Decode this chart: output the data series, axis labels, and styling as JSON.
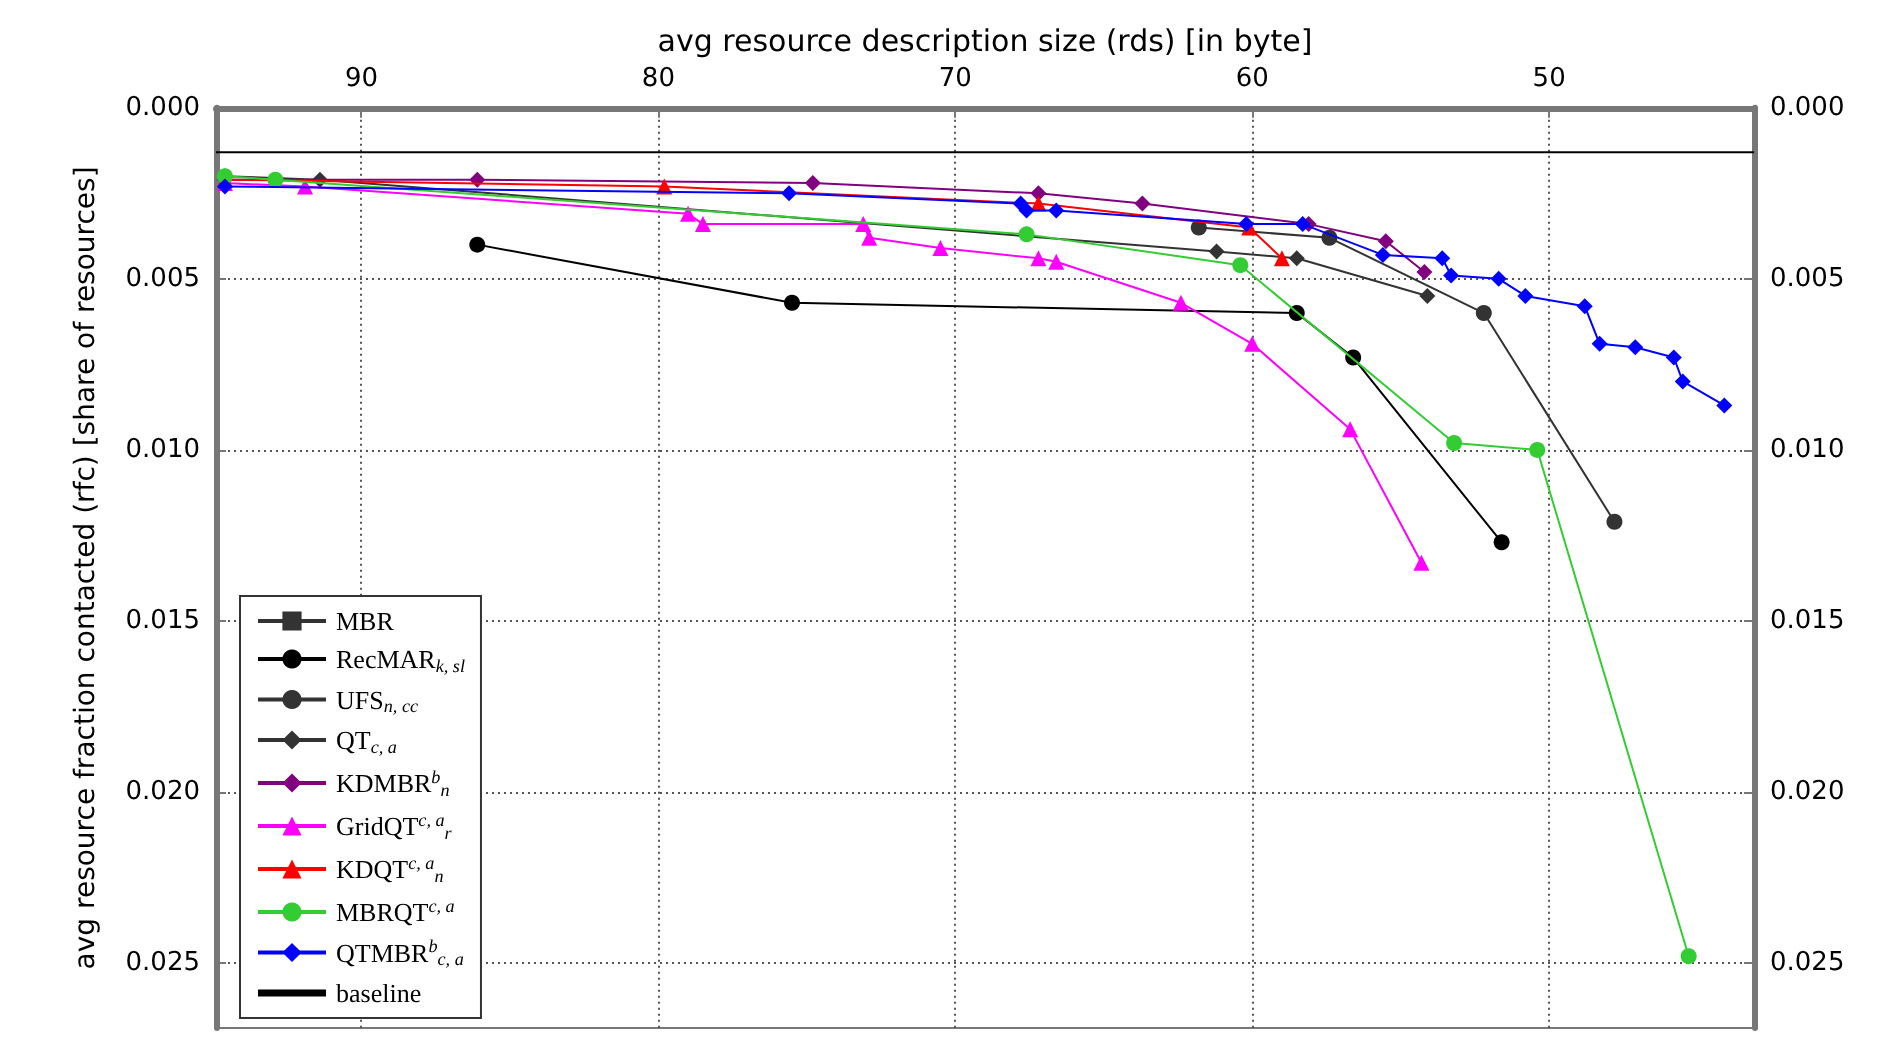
{
  "chart_data": {
    "type": "line",
    "xlabel": "avg resource description size (rds) [in byte]",
    "ylabel": "avg resource fraction contacted (rfc) [share of resources]",
    "xlim": [
      94.9,
      43.1
    ],
    "xticks": [
      90,
      80,
      70,
      60,
      50
    ],
    "ylim": [
      0.0269,
      0
    ],
    "yticks": [
      {
        "value": 0,
        "label": "0.000"
      },
      {
        "value": 0.005,
        "label": "0.005"
      },
      {
        "value": 0.01,
        "label": "0.010"
      },
      {
        "value": 0.015,
        "label": "0.015"
      },
      {
        "value": 0.02,
        "label": "0.020"
      },
      {
        "value": 0.025,
        "label": "0.025"
      }
    ],
    "y2lim": [
      0.0269,
      0
    ],
    "y2ticks": [
      {
        "value": 0,
        "label": "0.000"
      },
      {
        "value": 0.005,
        "label": "0.005"
      },
      {
        "value": 0.01,
        "label": "0.010"
      },
      {
        "value": 0.015,
        "label": "0.015"
      },
      {
        "value": 0.02,
        "label": "0.020"
      },
      {
        "value": 0.025,
        "label": "0.025"
      }
    ],
    "grid": true,
    "legend": "bottom left",
    "series": [
      {
        "name": "MBR",
        "color": "#333333",
        "marker": "square"
      },
      {
        "name": "RecMAR$_{k, sl}$",
        "color": "#000000",
        "marker": "circle",
        "x": [
          86.1,
          75.5,
          58.5,
          56.6,
          51.6
        ],
        "values": [
          0.004,
          0.0057,
          0.006,
          0.0073,
          0.0127
        ]
      },
      {
        "name": "UFS$_{n, cc}$",
        "color": "#333333",
        "marker": "circle",
        "x": [
          61.8,
          57.4,
          52.2,
          47.8
        ],
        "values": [
          0.0035,
          0.0038,
          0.006,
          0.0121
        ]
      },
      {
        "name": "QT$_{c, a}$",
        "color": "#333333",
        "marker": "diamond",
        "x": [
          94.6,
          91.4,
          61.2,
          58.5,
          54.1
        ],
        "values": [
          0.002,
          0.0021,
          0.0042,
          0.0044,
          0.0055
        ]
      },
      {
        "name": "KDMBR$^{b}$$_{n}$",
        "color": "#800080",
        "marker": "diamond",
        "x": [
          94.6,
          86.1,
          74.8,
          67.2,
          63.7,
          58.1,
          55.5,
          54.2
        ],
        "values": [
          0.0021,
          0.0021,
          0.0022,
          0.0025,
          0.0028,
          0.0034,
          0.0039,
          0.0048
        ]
      },
      {
        "name": "GridQT$^{c, a}$$_{r}$",
        "color": "#ff00ff",
        "marker": "triangle",
        "x": [
          94.6,
          91.9,
          79.0,
          78.5,
          73.1,
          72.9,
          70.5,
          67.2,
          66.6,
          62.4,
          60.0,
          56.7,
          54.3
        ],
        "values": [
          0.0022,
          0.0023,
          0.0031,
          0.0034,
          0.0034,
          0.0038,
          0.0041,
          0.0044,
          0.0045,
          0.0057,
          0.0069,
          0.0094,
          0.0133
        ]
      },
      {
        "name": "KDQT$^{c, a}$$_{n}$",
        "color": "#ff0000",
        "marker": "triangle",
        "x": [
          94.6,
          79.8,
          67.2,
          60.1,
          59.0
        ],
        "values": [
          0.0021,
          0.0023,
          0.0028,
          0.0035,
          0.0044
        ]
      },
      {
        "name": "MBRQT$^{c, a}$",
        "color": "#33cc33",
        "marker": "circle",
        "x": [
          94.6,
          92.9,
          67.6,
          60.4,
          53.2,
          50.4,
          45.3
        ],
        "values": [
          0.002,
          0.0021,
          0.0037,
          0.0046,
          0.0098,
          0.01,
          0.0248
        ]
      },
      {
        "name": "QTMBR$^{b}$$_{c, a}$",
        "color": "#0000ff",
        "marker": "diamond",
        "x": [
          94.6,
          75.6,
          67.8,
          67.6,
          66.6,
          60.2,
          58.3,
          55.6,
          53.6,
          53.3,
          51.7,
          50.8,
          48.8,
          48.3,
          47.1,
          45.8,
          45.5,
          44.1
        ],
        "values": [
          0.0023,
          0.0025,
          0.0028,
          0.003,
          0.003,
          0.0034,
          0.0034,
          0.0043,
          0.0044,
          0.0049,
          0.005,
          0.0055,
          0.0058,
          0.0069,
          0.007,
          0.0073,
          0.008,
          0.0087
        ]
      },
      {
        "name": "baseline",
        "color": "#000000",
        "marker": "none",
        "x": [
          94.9,
          43.1
        ],
        "values": [
          0.0013,
          0.0013
        ]
      }
    ]
  }
}
